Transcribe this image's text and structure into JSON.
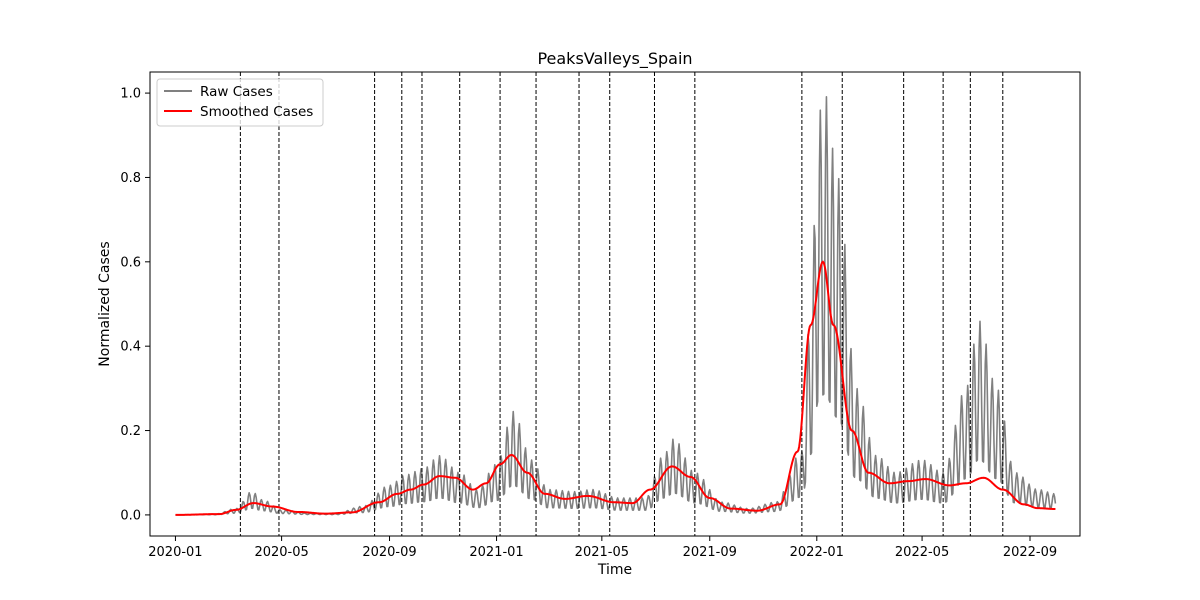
{
  "chart_data": {
    "type": "line",
    "title": "PeaksValleys_Spain",
    "xlabel": "Time",
    "ylabel": "Normalized Cases",
    "x_range": [
      "2019-12-03",
      "2022-10-28"
    ],
    "ylim": [
      -0.05,
      1.05
    ],
    "grid": false,
    "legend_position": "top-left",
    "x_tick_labels": [
      "2020-01",
      "2020-05",
      "2020-09",
      "2021-01",
      "2021-05",
      "2021-09",
      "2022-01",
      "2022-05",
      "2022-09"
    ],
    "y_tick_labels": [
      "0.0",
      "0.2",
      "0.4",
      "0.6",
      "0.8",
      "1.0"
    ],
    "series": [
      {
        "name": "Raw Cases",
        "color": "#808080",
        "weekly_oscillation": true,
        "points": [
          [
            "2020-01-01",
            0.0
          ],
          [
            "2020-02-15",
            0.002
          ],
          [
            "2020-03-10",
            0.015
          ],
          [
            "2020-03-28",
            0.055
          ],
          [
            "2020-04-10",
            0.035
          ],
          [
            "2020-05-01",
            0.012
          ],
          [
            "2020-06-01",
            0.004
          ],
          [
            "2020-07-01",
            0.003
          ],
          [
            "2020-08-01",
            0.02
          ],
          [
            "2020-09-01",
            0.07
          ],
          [
            "2020-09-20",
            0.095
          ],
          [
            "2020-10-10",
            0.11
          ],
          [
            "2020-10-28",
            0.14
          ],
          [
            "2020-11-20",
            0.1
          ],
          [
            "2020-12-10",
            0.06
          ],
          [
            "2021-01-01",
            0.12
          ],
          [
            "2021-01-20",
            0.245
          ],
          [
            "2021-02-10",
            0.13
          ],
          [
            "2021-03-01",
            0.06
          ],
          [
            "2021-04-01",
            0.055
          ],
          [
            "2021-04-20",
            0.06
          ],
          [
            "2021-05-20",
            0.04
          ],
          [
            "2021-06-20",
            0.04
          ],
          [
            "2021-07-10",
            0.14
          ],
          [
            "2021-07-22",
            0.18
          ],
          [
            "2021-08-15",
            0.1
          ],
          [
            "2021-09-15",
            0.03
          ],
          [
            "2021-10-15",
            0.015
          ],
          [
            "2021-11-15",
            0.03
          ],
          [
            "2021-12-15",
            0.15
          ],
          [
            "2021-12-25",
            0.5
          ],
          [
            "2022-01-03",
            0.95
          ],
          [
            "2022-01-10",
            1.0
          ],
          [
            "2022-01-25",
            0.8
          ],
          [
            "2022-02-15",
            0.3
          ],
          [
            "2022-03-10",
            0.14
          ],
          [
            "2022-04-01",
            0.1
          ],
          [
            "2022-05-01",
            0.13
          ],
          [
            "2022-05-25",
            0.1
          ],
          [
            "2022-06-20",
            0.3
          ],
          [
            "2022-07-05",
            0.46
          ],
          [
            "2022-07-25",
            0.3
          ],
          [
            "2022-08-15",
            0.1
          ],
          [
            "2022-09-10",
            0.06
          ],
          [
            "2022-09-30",
            0.05
          ]
        ]
      },
      {
        "name": "Smoothed Cases",
        "color": "#ff0000",
        "points": [
          [
            "2020-01-01",
            0.0
          ],
          [
            "2020-02-20",
            0.002
          ],
          [
            "2020-03-10",
            0.012
          ],
          [
            "2020-03-30",
            0.028
          ],
          [
            "2020-04-20",
            0.02
          ],
          [
            "2020-05-20",
            0.007
          ],
          [
            "2020-06-20",
            0.003
          ],
          [
            "2020-07-20",
            0.006
          ],
          [
            "2020-08-20",
            0.03
          ],
          [
            "2020-09-10",
            0.05
          ],
          [
            "2020-09-25",
            0.06
          ],
          [
            "2020-10-10",
            0.072
          ],
          [
            "2020-10-28",
            0.092
          ],
          [
            "2020-11-15",
            0.088
          ],
          [
            "2020-12-05",
            0.06
          ],
          [
            "2020-12-20",
            0.075
          ],
          [
            "2021-01-05",
            0.12
          ],
          [
            "2021-01-18",
            0.142
          ],
          [
            "2021-02-05",
            0.1
          ],
          [
            "2021-02-25",
            0.05
          ],
          [
            "2021-03-20",
            0.038
          ],
          [
            "2021-04-15",
            0.045
          ],
          [
            "2021-05-15",
            0.03
          ],
          [
            "2021-06-05",
            0.028
          ],
          [
            "2021-06-25",
            0.06
          ],
          [
            "2021-07-20",
            0.115
          ],
          [
            "2021-08-10",
            0.09
          ],
          [
            "2021-09-01",
            0.04
          ],
          [
            "2021-09-25",
            0.015
          ],
          [
            "2021-10-25",
            0.01
          ],
          [
            "2021-11-20",
            0.025
          ],
          [
            "2021-12-10",
            0.15
          ],
          [
            "2021-12-25",
            0.45
          ],
          [
            "2022-01-08",
            0.6
          ],
          [
            "2022-01-20",
            0.45
          ],
          [
            "2022-02-10",
            0.2
          ],
          [
            "2022-03-01",
            0.1
          ],
          [
            "2022-03-25",
            0.075
          ],
          [
            "2022-04-15",
            0.08
          ],
          [
            "2022-05-05",
            0.085
          ],
          [
            "2022-06-01",
            0.07
          ],
          [
            "2022-06-20",
            0.075
          ],
          [
            "2022-07-10",
            0.088
          ],
          [
            "2022-08-01",
            0.06
          ],
          [
            "2022-08-25",
            0.025
          ],
          [
            "2022-09-10",
            0.016
          ],
          [
            "2022-09-30",
            0.014
          ]
        ]
      }
    ],
    "vertical_markers": [
      "2020-03-15",
      "2020-04-28",
      "2020-08-15",
      "2020-09-15",
      "2020-10-08",
      "2020-11-20",
      "2021-01-05",
      "2021-02-15",
      "2021-04-05",
      "2021-05-10",
      "2021-06-30",
      "2021-08-15",
      "2021-12-15",
      "2022-01-30",
      "2022-04-10",
      "2022-05-25",
      "2022-06-25",
      "2022-08-01"
    ]
  }
}
